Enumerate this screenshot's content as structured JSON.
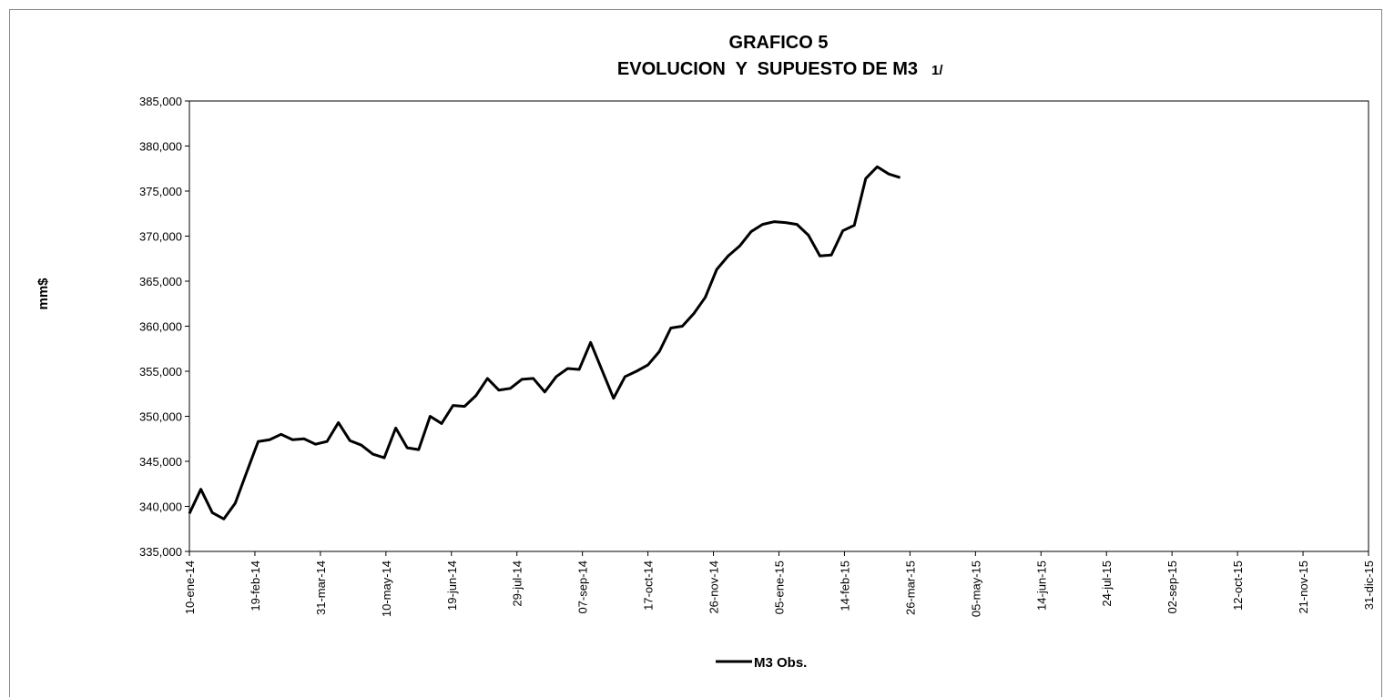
{
  "chart_data": {
    "type": "line",
    "title": "GRAFICO 5",
    "subtitle": "EVOLUCION  Y  SUPUESTO DE M3",
    "annotation": "1/",
    "y_label": "mm$",
    "x": [
      "2014-01-10",
      "2014-01-17",
      "2014-01-24",
      "2014-01-31",
      "2014-02-07",
      "2014-02-14",
      "2014-02-21",
      "2014-02-28",
      "2014-03-07",
      "2014-03-14",
      "2014-03-21",
      "2014-03-28",
      "2014-04-04",
      "2014-04-11",
      "2014-04-18",
      "2014-04-25",
      "2014-05-02",
      "2014-05-09",
      "2014-05-16",
      "2014-05-23",
      "2014-05-30",
      "2014-06-06",
      "2014-06-13",
      "2014-06-20",
      "2014-06-27",
      "2014-07-04",
      "2014-07-11",
      "2014-07-18",
      "2014-07-25",
      "2014-08-01",
      "2014-08-08",
      "2014-08-15",
      "2014-08-22",
      "2014-08-29",
      "2014-09-05",
      "2014-09-12",
      "2014-09-19",
      "2014-09-26",
      "2014-10-03",
      "2014-10-10",
      "2014-10-17",
      "2014-10-24",
      "2014-10-31",
      "2014-11-07",
      "2014-11-14",
      "2014-11-21",
      "2014-11-28",
      "2014-12-05",
      "2014-12-12",
      "2014-12-19",
      "2014-12-26",
      "2015-01-02",
      "2015-01-09",
      "2015-01-16",
      "2015-01-23",
      "2015-01-30",
      "2015-02-06",
      "2015-02-13",
      "2015-02-20",
      "2015-02-27",
      "2015-03-06",
      "2015-03-13",
      "2015-03-20"
    ],
    "series": [
      {
        "name": "M3 Obs.",
        "color": "#000000",
        "values": [
          339200,
          341900,
          339300,
          338600,
          340350,
          343800,
          347200,
          347400,
          348000,
          347400,
          347500,
          346900,
          347200,
          349300,
          347300,
          346800,
          345800,
          345400,
          348700,
          346500,
          346300,
          350000,
          349200,
          351200,
          351100,
          352300,
          354200,
          352900,
          353100,
          354100,
          354200,
          352700,
          354400,
          355300,
          355200,
          358200,
          355100,
          352000,
          354400,
          355000,
          355700,
          357200,
          359800,
          360000,
          361400,
          363200,
          366300,
          367800,
          368900,
          370500,
          371300,
          371600,
          371500,
          371300,
          370100,
          367800,
          367900,
          370600,
          371200,
          376400,
          377700,
          376900,
          376500
        ]
      }
    ],
    "xlim": [
      "2014-01-10",
      "2015-12-31"
    ],
    "xticks": [
      {
        "value": "2014-01-10",
        "label": "10-ene-14"
      },
      {
        "value": "2014-02-19",
        "label": "19-feb-14"
      },
      {
        "value": "2014-03-31",
        "label": "31-mar-14"
      },
      {
        "value": "2014-05-10",
        "label": "10-may-14"
      },
      {
        "value": "2014-06-19",
        "label": "19-jun-14"
      },
      {
        "value": "2014-07-29",
        "label": "29-jul-14"
      },
      {
        "value": "2014-09-07",
        "label": "07-sep-14"
      },
      {
        "value": "2014-10-17",
        "label": "17-oct-14"
      },
      {
        "value": "2014-11-26",
        "label": "26-nov-14"
      },
      {
        "value": "2015-01-05",
        "label": "05-ene-15"
      },
      {
        "value": "2015-02-14",
        "label": "14-feb-15"
      },
      {
        "value": "2015-03-26",
        "label": "26-mar-15"
      },
      {
        "value": "2015-05-05",
        "label": "05-may-15"
      },
      {
        "value": "2015-06-14",
        "label": "14-jun-15"
      },
      {
        "value": "2015-07-24",
        "label": "24-jul-15"
      },
      {
        "value": "2015-09-02",
        "label": "02-sep-15"
      },
      {
        "value": "2015-10-12",
        "label": "12-oct-15"
      },
      {
        "value": "2015-11-21",
        "label": "21-nov-15"
      },
      {
        "value": "2015-12-31",
        "label": "31-dic-15"
      }
    ],
    "ylim": [
      335000,
      385000
    ],
    "yticks": [
      {
        "value": 335000,
        "label": "335,000"
      },
      {
        "value": 340000,
        "label": "340,000"
      },
      {
        "value": 345000,
        "label": "345,000"
      },
      {
        "value": 350000,
        "label": "350,000"
      },
      {
        "value": 355000,
        "label": "355,000"
      },
      {
        "value": 360000,
        "label": "360,000"
      },
      {
        "value": 365000,
        "label": "365,000"
      },
      {
        "value": 370000,
        "label": "370,000"
      },
      {
        "value": 375000,
        "label": "375,000"
      },
      {
        "value": 380000,
        "label": "380,000"
      },
      {
        "value": 385000,
        "label": "385,000"
      }
    ],
    "grid": false,
    "legend": "bottom"
  }
}
